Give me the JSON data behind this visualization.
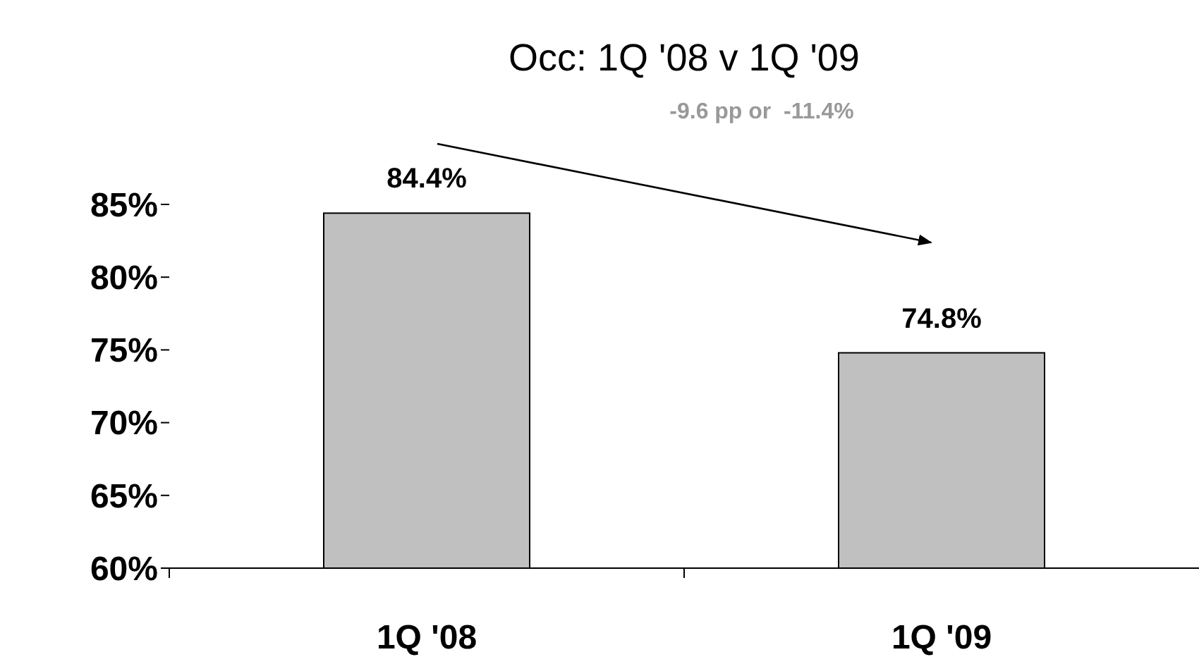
{
  "chart_data": {
    "type": "bar",
    "title": "Occ: 1Q '08 v 1Q '09",
    "categories": [
      "1Q '08",
      "1Q '09"
    ],
    "values": [
      84.4,
      74.8
    ],
    "value_labels": [
      "84.4%",
      "74.8%"
    ],
    "color": "#c0c0c0",
    "ylim": [
      60,
      85
    ],
    "yticks": [
      {
        "value": 60,
        "label": "60%"
      },
      {
        "value": 65,
        "label": "65%"
      },
      {
        "value": 70,
        "label": "70%"
      },
      {
        "value": 75,
        "label": "75%"
      },
      {
        "value": 80,
        "label": "80%"
      },
      {
        "value": 85,
        "label": "85%"
      }
    ],
    "annotations": [
      "-9.6 pp or  -11.4%"
    ],
    "grid": false
  }
}
